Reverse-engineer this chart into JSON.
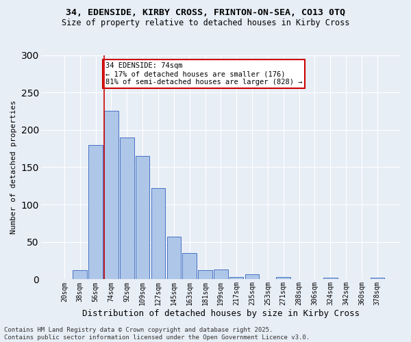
{
  "title_line1": "34, EDENSIDE, KIRBY CROSS, FRINTON-ON-SEA, CO13 0TQ",
  "title_line2": "Size of property relative to detached houses in Kirby Cross",
  "xlabel": "Distribution of detached houses by size in Kirby Cross",
  "ylabel": "Number of detached properties",
  "categories": [
    "20sqm",
    "38sqm",
    "56sqm",
    "74sqm",
    "92sqm",
    "109sqm",
    "127sqm",
    "145sqm",
    "163sqm",
    "181sqm",
    "199sqm",
    "217sqm",
    "235sqm",
    "253sqm",
    "271sqm",
    "288sqm",
    "306sqm",
    "324sqm",
    "342sqm",
    "360sqm",
    "378sqm"
  ],
  "values": [
    0,
    12,
    180,
    225,
    190,
    165,
    122,
    57,
    35,
    12,
    13,
    3,
    7,
    0,
    3,
    0,
    0,
    2,
    0,
    0,
    2
  ],
  "bar_color": "#aec6e8",
  "bar_edge_color": "#4472c4",
  "vline_idx": 3,
  "vline_color": "#cc0000",
  "ylim": [
    0,
    300
  ],
  "yticks": [
    0,
    50,
    100,
    150,
    200,
    250,
    300
  ],
  "annotation_text": "34 EDENSIDE: 74sqm\n← 17% of detached houses are smaller (176)\n81% of semi-detached houses are larger (828) →",
  "annotation_box_color": "#ffffff",
  "annotation_box_edge": "#cc0000",
  "footer_text": "Contains HM Land Registry data © Crown copyright and database right 2025.\nContains public sector information licensed under the Open Government Licence v3.0.",
  "bg_color": "#e8eef6",
  "grid_color": "#ffffff",
  "title_fontsize": 9.5,
  "subtitle_fontsize": 8.5,
  "ylabel_fontsize": 8,
  "xlabel_fontsize": 9,
  "tick_fontsize": 7,
  "annotation_fontsize": 7.5,
  "footer_fontsize": 6.5
}
